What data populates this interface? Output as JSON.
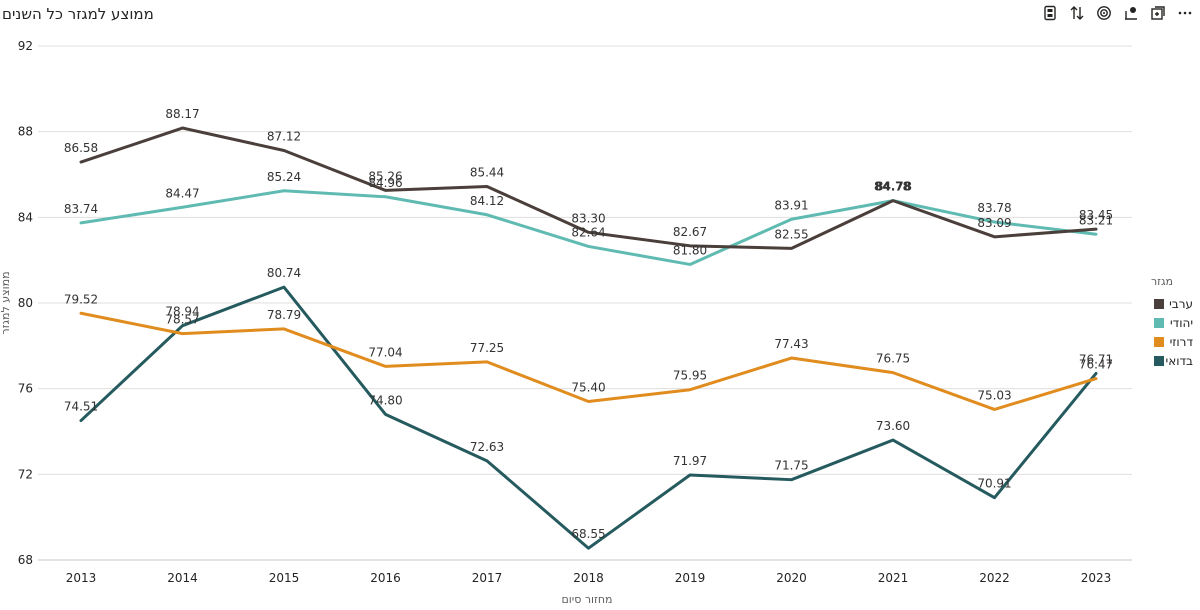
{
  "header": {
    "title": "ממוצע למגזר כל השנים"
  },
  "toolbar": {
    "icons": [
      "filter-icon",
      "sort-icon",
      "focus-icon",
      "spotlight-icon",
      "expand-icon",
      "more-icon"
    ]
  },
  "chart_data": {
    "type": "line",
    "title": "ממוצע למגזר כל השנים",
    "xlabel": "מחזור סיום",
    "ylabel": "ממוצע למגזר",
    "x": [
      "2013",
      "2014",
      "2015",
      "2016",
      "2017",
      "2018",
      "2019",
      "2020",
      "2021",
      "2022",
      "2023"
    ],
    "ylim": [
      68,
      92
    ],
    "yticks": [
      "68",
      "72",
      "76",
      "80",
      "84",
      "88",
      "92"
    ],
    "grid": true,
    "legend_title": "מגזר",
    "legend_position": "right",
    "series": [
      {
        "name": "ערבי",
        "color": "#4a3f3a",
        "values": [
          86.58,
          88.17,
          87.12,
          85.26,
          85.44,
          83.3,
          82.67,
          82.55,
          84.78,
          83.09,
          83.45
        ],
        "labels": [
          "86.58",
          "88.17",
          "87.12",
          "85.26",
          "85.44",
          "83.30",
          "82.67",
          "82.55",
          "84.78",
          "83.09",
          "83.45"
        ]
      },
      {
        "name": "יהודי",
        "color": "#5fbbb2",
        "values": [
          83.74,
          84.47,
          85.24,
          84.96,
          84.12,
          82.64,
          81.8,
          83.91,
          84.78,
          83.78,
          83.21
        ],
        "labels": [
          "83.74",
          "84.47",
          "85.24",
          "84.96",
          "84.12",
          "82.64",
          "81.80",
          "83.91",
          "84.78",
          "83.78",
          "83.21"
        ]
      },
      {
        "name": "דרוזי",
        "color": "#e08c1e",
        "values": [
          79.52,
          78.57,
          78.79,
          77.04,
          77.25,
          75.4,
          75.95,
          77.43,
          76.75,
          75.03,
          76.47
        ],
        "labels": [
          "79.52",
          "78.57",
          "78.79",
          "77.04",
          "77.25",
          "75.40",
          "75.95",
          "77.43",
          "76.75",
          "75.03",
          "76.47"
        ]
      },
      {
        "name": "בדואי",
        "color": "#255a5e",
        "values": [
          74.51,
          78.94,
          80.74,
          74.8,
          72.63,
          68.55,
          71.97,
          71.75,
          73.6,
          70.91,
          76.71
        ],
        "labels": [
          "74.51",
          "78.94",
          "80.74",
          "74.80",
          "72.63",
          "68.55",
          "71.97",
          "71.75",
          "73.60",
          "70.91",
          "76.71"
        ]
      }
    ]
  }
}
